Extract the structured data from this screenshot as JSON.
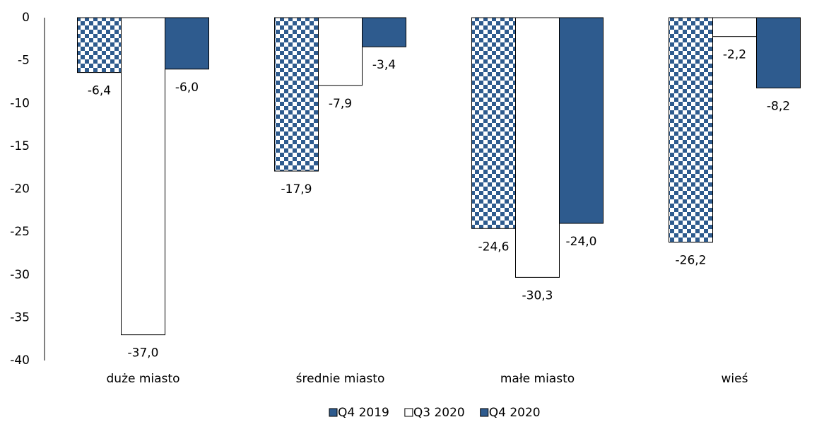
{
  "chart_data": {
    "type": "bar",
    "categories": [
      "duże miasto",
      "średnie miasto",
      "małe miasto",
      "wieś"
    ],
    "series": [
      {
        "name": "Q4 2019",
        "color": "#2e5b8e",
        "pattern": "checker",
        "values": [
          -6.4,
          -17.9,
          -24.6,
          -26.2
        ],
        "value_labels": [
          "-6,4",
          "-17,9",
          "-24,6",
          "-26,2"
        ]
      },
      {
        "name": "Q3 2020",
        "color": "#ffffff",
        "values": [
          -37.0,
          -7.9,
          -30.3,
          -2.2
        ],
        "value_labels": [
          "-37,0",
          "-7,9",
          "-30,3",
          "-2,2"
        ]
      },
      {
        "name": "Q4 2020",
        "color": "#2e5b8e",
        "values": [
          -6.0,
          -3.4,
          -24.0,
          -8.2
        ],
        "value_labels": [
          "-6,0",
          "-3,4",
          "-24,0",
          "-8,2"
        ]
      }
    ],
    "ylim": [
      -40,
      0
    ],
    "yticks": [
      0,
      -5,
      -10,
      -15,
      -20,
      -25,
      -30,
      -35,
      -40
    ],
    "grid": false,
    "legend": "bottom"
  }
}
